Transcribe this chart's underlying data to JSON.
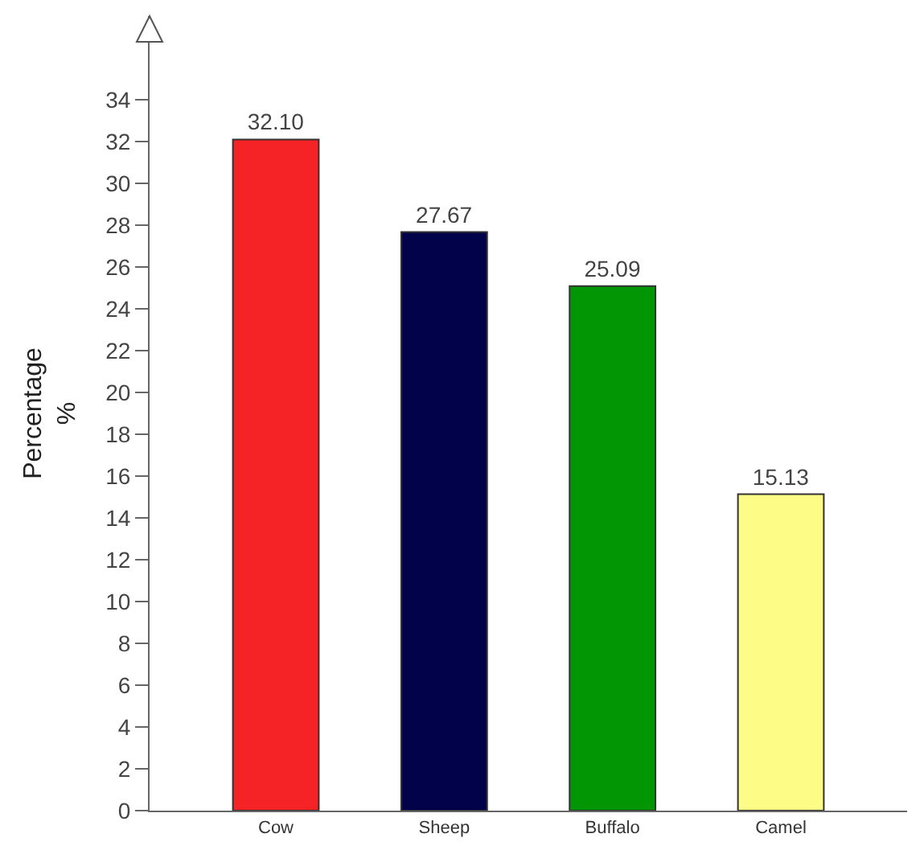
{
  "chart_data": {
    "type": "bar",
    "ylabel": "Percentage\n%",
    "categories": [
      "Cow",
      "Sheep",
      "Buffalo",
      "Camel"
    ],
    "values": [
      32.1,
      27.67,
      25.09,
      15.13
    ],
    "colors": [
      "#f52226",
      "#01024a",
      "#029605",
      "#fcfc86"
    ],
    "value_labels": [
      "32.10",
      "27.67",
      "25.09",
      "15.13"
    ],
    "ylim": [
      0,
      38
    ],
    "yticks": [
      0,
      2,
      4,
      6,
      8,
      10,
      12,
      14,
      16,
      18,
      20,
      22,
      24,
      26,
      28,
      30,
      32,
      34
    ]
  }
}
